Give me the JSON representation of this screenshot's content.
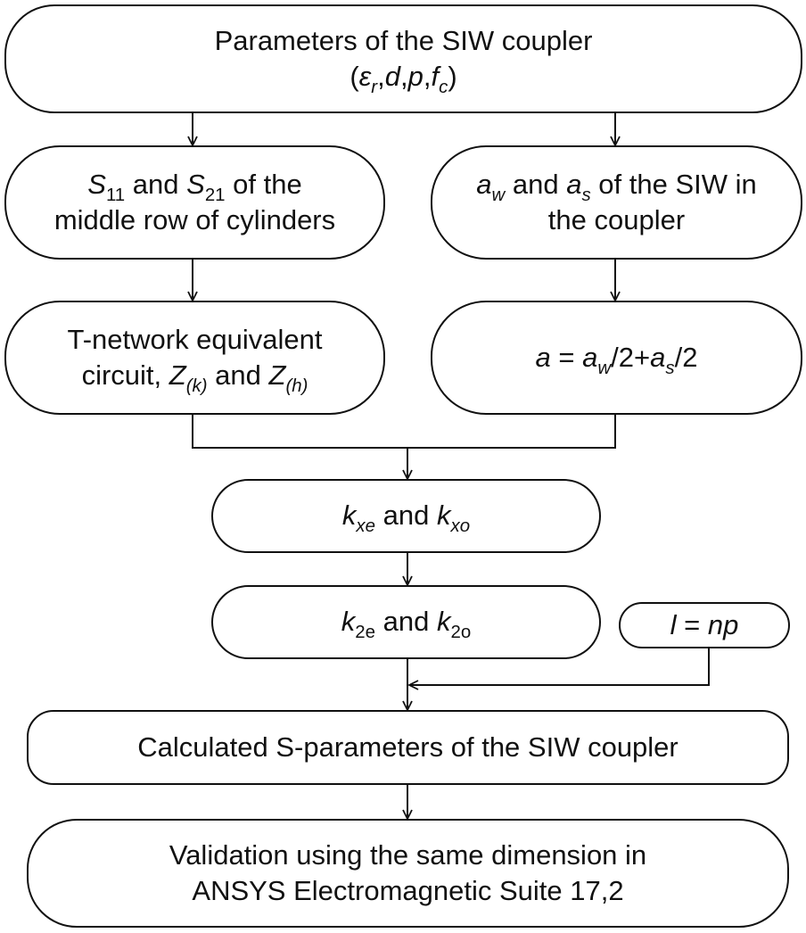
{
  "nodes": {
    "params": {
      "line1": "Parameters of the SIW coupler",
      "open": "(",
      "eps": "ε",
      "eps_sub": "r",
      "sep1": ",",
      "d": "d",
      "sep2": ",",
      "p": "p",
      "sep3": ",",
      "f": "f",
      "f_sub": "c",
      "close": ")"
    },
    "s_params": {
      "s1": "S",
      "s1_sub": "11",
      "and": " and ",
      "s2": "S",
      "s2_sub": "21",
      "tail": " of the",
      "line2": "middle row of cylinders"
    },
    "aw_as": {
      "a1": "a",
      "a1_sub": "w",
      "and": " and ",
      "a2": "a",
      "a2_sub": "s",
      "tail": " of the SIW in",
      "line2": "the coupler"
    },
    "tnetwork": {
      "line1": "T-network equivalent",
      "pre": "circuit, ",
      "z1": "Z",
      "z1_sub": "(k)",
      "and": " and ",
      "z2": "Z",
      "z2_sub": "(h)"
    },
    "a_formula": {
      "a": "a",
      "eq": " = ",
      "aw": "a",
      "aw_sub": "w",
      "mid": "/2+",
      "as": "a",
      "as_sub": "s",
      "end": "/2"
    },
    "kx": {
      "k1": "k",
      "k1_sub": "xe",
      "and": " and ",
      "k2": "k",
      "k2_sub": "xo"
    },
    "k2": {
      "k1": "k",
      "k1_sub": "2e",
      "and": " and ",
      "k2": "k",
      "k2_sub": "2o"
    },
    "length": {
      "l": "l",
      "eq": " = ",
      "np": "np"
    },
    "calculated": {
      "line1": "Calculated S-parameters of the SIW coupler"
    },
    "validation": {
      "line1": "Validation using the same dimension in",
      "line2": "ANSYS Electromagnetic Suite 17,2"
    }
  },
  "colors": {
    "stroke": "#111111",
    "fill": "#ffffff",
    "text": "#111111"
  }
}
